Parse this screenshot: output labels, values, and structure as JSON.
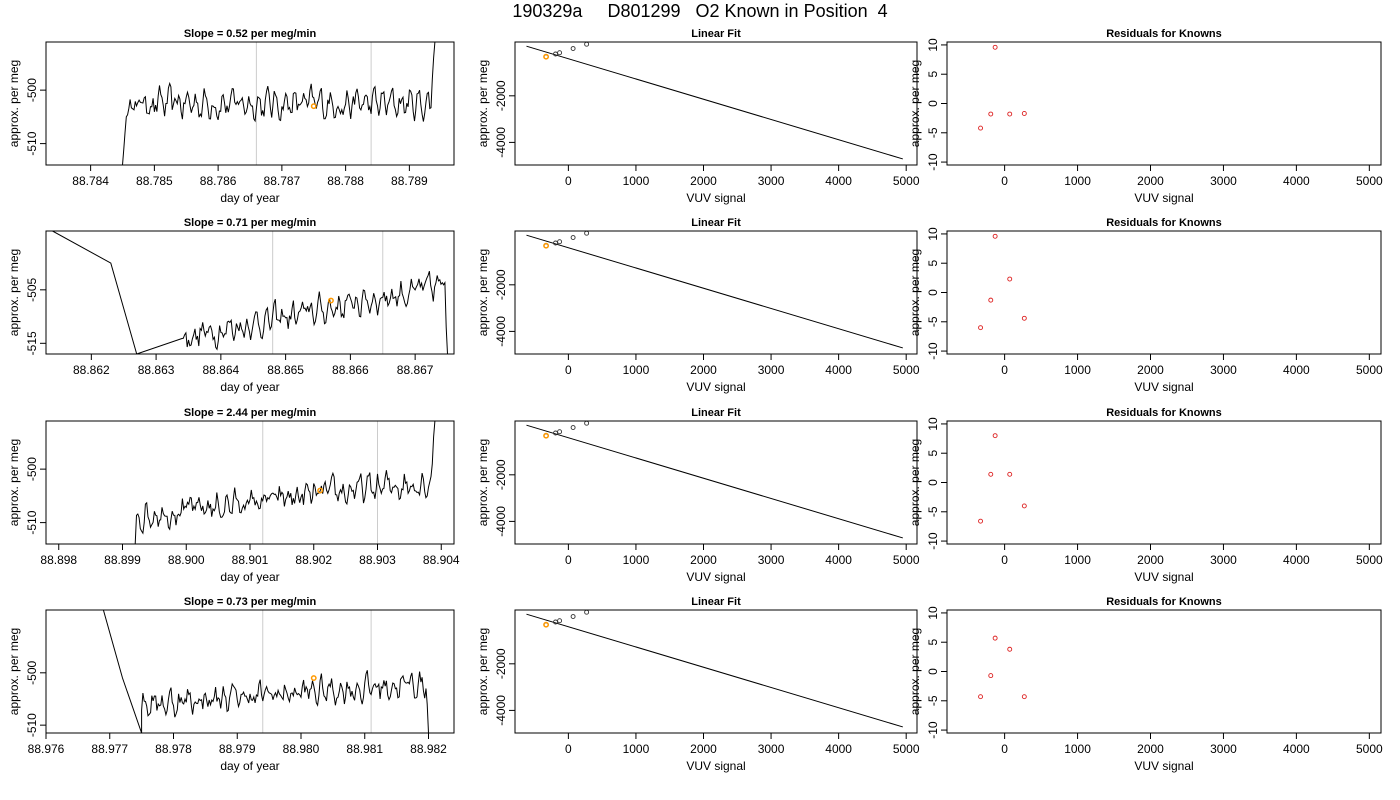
{
  "title": "190329a     D801299   O2 Known in Position  4",
  "chart_data": [
    {
      "type": "line",
      "title": "Slope =  0.52  per meg/min",
      "xlabel": "day of year",
      "ylabel": "approx. per meg",
      "xlim": [
        88.7833,
        88.7897
      ],
      "ylim": [
        -514,
        -491
      ],
      "xticks": [
        88.784,
        88.785,
        88.786,
        88.787,
        88.788,
        88.789
      ],
      "xtick_labels": [
        "88.784",
        "88.785",
        "88.786",
        "88.787",
        "88.788",
        "88.789"
      ],
      "yticks": [
        -510,
        -500
      ],
      "ytick_labels": [
        "-510",
        "-500"
      ],
      "vlines": [
        88.7866,
        88.7884
      ],
      "marker": {
        "x": 88.7875,
        "y": -503
      },
      "x_start": 88.7845,
      "x_end": 88.7894,
      "step": 2e-05,
      "mean": -502.5,
      "amp": 1.8,
      "lead": [
        -514,
        -511,
        -508,
        -505
      ],
      "tail": [
        -498,
        -494,
        -491
      ]
    },
    {
      "type": "scatter",
      "title": "Linear Fit",
      "xlabel": "VUV signal",
      "ylabel": "approx. per meg",
      "xlim": [
        -790,
        5160
      ],
      "ylim": [
        -4970,
        310
      ],
      "xticks": [
        0,
        1000,
        2000,
        3000,
        4000,
        5000
      ],
      "xtick_labels": [
        "0",
        "1000",
        "2000",
        "3000",
        "4000",
        "5000"
      ],
      "yticks": [
        -4000,
        -2000
      ],
      "ytick_labels": [
        "-4000",
        "-2000"
      ],
      "fit_line": {
        "x": [
          -620,
          4950
        ],
        "y": [
          130,
          -4710
        ]
      },
      "points": {
        "x": [
          -330,
          -190,
          -130,
          70,
          270
        ],
        "y": [
          -330,
          -205,
          -150,
          30,
          215
        ]
      },
      "highlight": {
        "x": -330,
        "y": -320
      }
    },
    {
      "type": "scatter",
      "title": "Residuals for Knowns",
      "xlabel": "VUV signal",
      "ylabel": "approx. per meg",
      "xlim": [
        -790,
        5160
      ],
      "ylim": [
        -10.5,
        10.5
      ],
      "xticks": [
        0,
        1000,
        2000,
        3000,
        4000,
        5000
      ],
      "xtick_labels": [
        "0",
        "1000",
        "2000",
        "3000",
        "4000",
        "5000"
      ],
      "yticks": [
        -10,
        -5,
        0,
        5,
        10
      ],
      "ytick_labels": [
        "-10",
        "-5",
        "0",
        "5",
        "10"
      ],
      "points": {
        "x": [
          -330,
          -190,
          -130,
          70,
          270
        ],
        "y": [
          -4.2,
          -1.8,
          9.6,
          -1.8,
          -1.7
        ]
      }
    },
    {
      "type": "line",
      "title": "Slope =  0.71  per meg/min",
      "xlabel": "day of year",
      "ylabel": "approx. per meg",
      "xlim": [
        88.8613,
        88.8676
      ],
      "ylim": [
        -517,
        -494
      ],
      "xticks": [
        88.862,
        88.863,
        88.864,
        88.865,
        88.866,
        88.867
      ],
      "xtick_labels": [
        "88.862",
        "88.863",
        "88.864",
        "88.865",
        "88.866",
        "88.867"
      ],
      "yticks": [
        -515,
        -505
      ],
      "ytick_labels": [
        "-515",
        "-505"
      ],
      "vlines": [
        88.8648,
        88.8665
      ],
      "marker": {
        "x": 88.8657,
        "y": -507
      },
      "x_start": 88.8634,
      "x_end": 88.8675,
      "step": 2e-05,
      "mean": -509,
      "amp": 1.7,
      "trend": 10,
      "tail": [
        -512,
        -517
      ],
      "left_spike": {
        "x": [
          88.8614,
          88.8623,
          88.8627
        ],
        "y": [
          -494,
          -500,
          -517
        ]
      }
    },
    {
      "type": "scatter",
      "title": "Linear Fit",
      "xlabel": "VUV signal",
      "ylabel": "approx. per meg",
      "xlim": [
        -790,
        5160
      ],
      "ylim": [
        -4970,
        310
      ],
      "xticks": [
        0,
        1000,
        2000,
        3000,
        4000,
        5000
      ],
      "xtick_labels": [
        "0",
        "1000",
        "2000",
        "3000",
        "4000",
        "5000"
      ],
      "yticks": [
        -4000,
        -2000
      ],
      "ytick_labels": [
        "-4000",
        "-2000"
      ],
      "fit_line": {
        "x": [
          -620,
          4950
        ],
        "y": [
          130,
          -4710
        ]
      },
      "points": {
        "x": [
          -330,
          -190,
          -130,
          70,
          270
        ],
        "y": [
          -330,
          -205,
          -150,
          30,
          215
        ]
      },
      "highlight": {
        "x": -330,
        "y": -320
      }
    },
    {
      "type": "scatter",
      "title": "Residuals for Knowns",
      "xlabel": "VUV signal",
      "ylabel": "approx. per meg",
      "xlim": [
        -790,
        5160
      ],
      "ylim": [
        -10.5,
        10.5
      ],
      "xticks": [
        0,
        1000,
        2000,
        3000,
        4000,
        5000
      ],
      "xtick_labels": [
        "0",
        "1000",
        "2000",
        "3000",
        "4000",
        "5000"
      ],
      "yticks": [
        -10,
        -5,
        0,
        5,
        10
      ],
      "ytick_labels": [
        "-10",
        "-5",
        "0",
        "5",
        "10"
      ],
      "points": {
        "x": [
          -330,
          -190,
          -130,
          70,
          270
        ],
        "y": [
          -6.0,
          -1.3,
          9.6,
          2.3,
          -4.4
        ]
      }
    },
    {
      "type": "line",
      "title": "Slope =  2.44  per meg/min",
      "xlabel": "day of year",
      "ylabel": "approx. per meg",
      "xlim": [
        88.8978,
        88.9042
      ],
      "ylim": [
        -514,
        -491
      ],
      "xticks": [
        88.898,
        88.899,
        88.9,
        88.901,
        88.902,
        88.903,
        88.904
      ],
      "xtick_labels": [
        "88.898",
        "88.899",
        "88.900",
        "88.901",
        "88.902",
        "88.903",
        "88.904"
      ],
      "yticks": [
        -510,
        -500
      ],
      "ytick_labels": [
        "-510",
        "-500"
      ],
      "vlines": [
        88.9012,
        88.903
      ],
      "marker": {
        "x": 88.9021,
        "y": -504
      },
      "x_start": 88.8992,
      "x_end": 88.9039,
      "step": 2e-05,
      "mean": -505.5,
      "amp": 1.7,
      "trend": 6.5,
      "lead": [
        -514
      ],
      "tail": [
        -499,
        -494,
        -491
      ]
    },
    {
      "type": "scatter",
      "title": "Linear Fit",
      "xlabel": "VUV signal",
      "ylabel": "approx. per meg",
      "xlim": [
        -790,
        5160
      ],
      "ylim": [
        -4970,
        310
      ],
      "xticks": [
        0,
        1000,
        2000,
        3000,
        4000,
        5000
      ],
      "xtick_labels": [
        "0",
        "1000",
        "2000",
        "3000",
        "4000",
        "5000"
      ],
      "yticks": [
        -4000,
        -2000
      ],
      "ytick_labels": [
        "-4000",
        "-2000"
      ],
      "fit_line": {
        "x": [
          -620,
          4950
        ],
        "y": [
          130,
          -4710
        ]
      },
      "points": {
        "x": [
          -330,
          -190,
          -130,
          70,
          270
        ],
        "y": [
          -330,
          -205,
          -150,
          30,
          215
        ]
      },
      "highlight": {
        "x": -330,
        "y": -320
      }
    },
    {
      "type": "scatter",
      "title": "Residuals for Knowns",
      "xlabel": "VUV signal",
      "ylabel": "approx. per meg",
      "xlim": [
        -790,
        5160
      ],
      "ylim": [
        -10.5,
        10.5
      ],
      "xticks": [
        0,
        1000,
        2000,
        3000,
        4000,
        5000
      ],
      "xtick_labels": [
        "0",
        "1000",
        "2000",
        "3000",
        "4000",
        "5000"
      ],
      "yticks": [
        -10,
        -5,
        0,
        5,
        10
      ],
      "ytick_labels": [
        "-10",
        "-5",
        "0",
        "5",
        "10"
      ],
      "points": {
        "x": [
          -330,
          -190,
          -130,
          70,
          270
        ],
        "y": [
          -6.6,
          1.4,
          8.0,
          1.4,
          -4.0
        ]
      }
    },
    {
      "type": "line",
      "title": "Slope =  0.73  per meg/min",
      "xlabel": "day of year",
      "ylabel": "approx. per meg",
      "xlim": [
        88.976,
        88.9824
      ],
      "ylim": [
        -511.5,
        -488
      ],
      "xticks": [
        88.976,
        88.977,
        88.978,
        88.979,
        88.98,
        88.981,
        88.982
      ],
      "xtick_labels": [
        "88.976",
        "88.977",
        "88.978",
        "88.979",
        "88.980",
        "88.981",
        "88.982"
      ],
      "yticks": [
        -510,
        -500
      ],
      "ytick_labels": [
        "-510",
        "-500"
      ],
      "vlines": [
        88.9794,
        88.9811
      ],
      "marker": {
        "x": 88.9802,
        "y": -501
      },
      "x_start": 88.9775,
      "x_end": 88.982,
      "step": 2e-05,
      "mean": -504,
      "amp": 1.7,
      "trend": 4,
      "tail": [
        -506,
        -511.5
      ],
      "left_spike": {
        "x": [
          88.9769,
          88.9772,
          88.9775
        ],
        "y": [
          -488,
          -501,
          -511.5
        ]
      }
    },
    {
      "type": "scatter",
      "title": "Linear Fit",
      "xlabel": "VUV signal",
      "ylabel": "approx. per meg",
      "xlim": [
        -790,
        5160
      ],
      "ylim": [
        -4970,
        310
      ],
      "xticks": [
        0,
        1000,
        2000,
        3000,
        4000,
        5000
      ],
      "xtick_labels": [
        "0",
        "1000",
        "2000",
        "3000",
        "4000",
        "5000"
      ],
      "yticks": [
        -4000,
        -2000
      ],
      "ytick_labels": [
        "-4000",
        "-2000"
      ],
      "fit_line": {
        "x": [
          -620,
          4950
        ],
        "y": [
          130,
          -4710
        ]
      },
      "points": {
        "x": [
          -330,
          -190,
          -130,
          70,
          270
        ],
        "y": [
          -330,
          -205,
          -150,
          30,
          215
        ]
      },
      "highlight": {
        "x": -330,
        "y": -320
      }
    },
    {
      "type": "scatter",
      "title": "Residuals for Knowns",
      "xlabel": "VUV signal",
      "ylabel": "approx. per meg",
      "xlim": [
        -790,
        5160
      ],
      "ylim": [
        -10.5,
        10.5
      ],
      "xticks": [
        0,
        1000,
        2000,
        3000,
        4000,
        5000
      ],
      "xtick_labels": [
        "0",
        "1000",
        "2000",
        "3000",
        "4000",
        "5000"
      ],
      "yticks": [
        -10,
        -5,
        0,
        5,
        10
      ],
      "ytick_labels": [
        "-10",
        "-5",
        "0",
        "5",
        "10"
      ],
      "points": {
        "x": [
          -330,
          -190,
          -130,
          70,
          270
        ],
        "y": [
          -4.3,
          -0.7,
          5.7,
          3.8,
          -4.3
        ]
      }
    }
  ]
}
